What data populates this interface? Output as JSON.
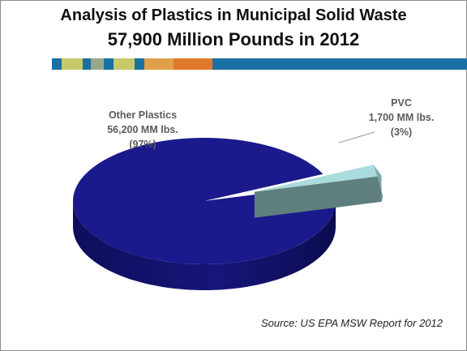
{
  "chart_data": {
    "type": "pie",
    "title": "Analysis of Plastics in Municipal Solid Waste",
    "subtitle": "57,900 Million Pounds in 2012",
    "source": "Source: US EPA MSW Report for 2012",
    "slices": [
      {
        "name": "Other Plastics",
        "value": 56200,
        "percent": 97,
        "value_label": "56,200 MM lbs.",
        "percent_label": "(97%)",
        "color": "#1a1a8c"
      },
      {
        "name": "PVC",
        "value": 1700,
        "percent": 3,
        "value_label": "1,700 MM lbs.",
        "percent_label": "(3%)",
        "color": "#a9dcdc"
      }
    ]
  },
  "colors": {
    "stripe": [
      "#1a6fa3",
      "#c7c96a",
      "#1a6fa3",
      "#9aa88a",
      "#1a6fa3",
      "#c7c96a",
      "#1a6fa3",
      "#e0a04a",
      "#e07a2a",
      "#1a6fa3"
    ]
  }
}
